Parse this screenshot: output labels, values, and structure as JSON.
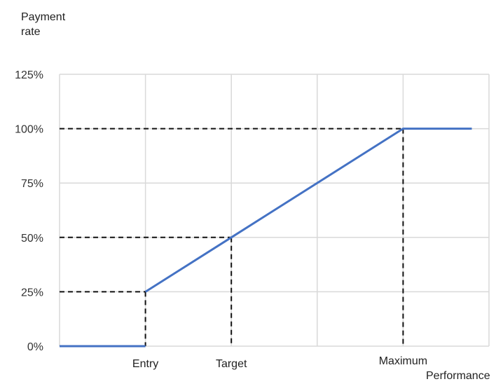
{
  "chart_data": {
    "type": "line",
    "ylabel": "Payment\nrate",
    "xlabel": "Performance",
    "y_ticks": [
      "0%",
      "25%",
      "50%",
      "75%",
      "100%",
      "125%"
    ],
    "ylim": [
      0,
      125
    ],
    "x_ticks": [
      "Entry",
      "Target",
      "Maximum"
    ],
    "grid": true,
    "series": [
      {
        "x": [
          0,
          1,
          2,
          4,
          4.8
        ],
        "y": [
          0,
          0,
          50,
          100,
          100
        ],
        "color": "#4472C4"
      }
    ],
    "guides": [
      {
        "x": "Entry",
        "y": 25
      },
      {
        "x": "Target",
        "y": 50
      },
      {
        "x": "Maximum",
        "y": 100
      }
    ]
  }
}
